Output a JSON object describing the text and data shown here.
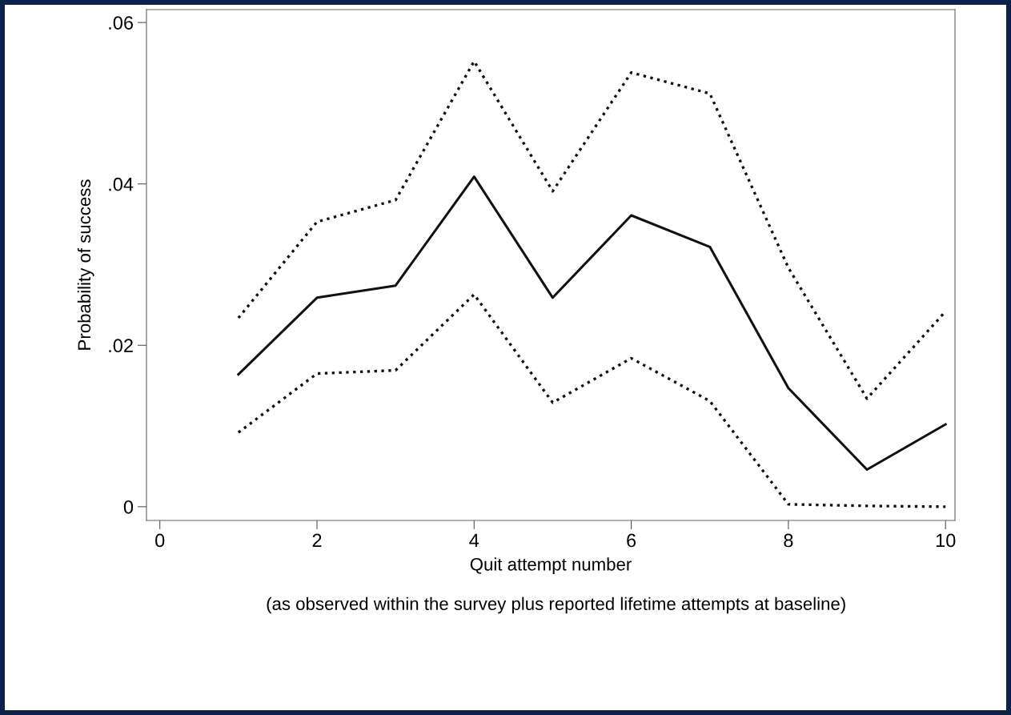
{
  "chart_data": {
    "type": "line",
    "xlabel": "Quit attempt number",
    "ylabel": "Probability of success",
    "annotations": [
      "(as observed within the survey plus reported lifetime attempts at baseline)"
    ],
    "x": [
      1,
      2,
      3,
      4,
      5,
      6,
      7,
      8,
      9,
      10
    ],
    "series": [
      {
        "color": "#111111",
        "line_style": "dotted",
        "values": [
          0.0234,
          0.0353,
          0.038,
          0.0552,
          0.0391,
          0.0538,
          0.0512,
          0.0296,
          0.0134,
          0.0242
        ]
      },
      {
        "color": "#111111",
        "line_style": "solid",
        "values": [
          0.0164,
          0.0259,
          0.0274,
          0.0409,
          0.0259,
          0.0361,
          0.0322,
          0.0147,
          0.0046,
          0.0102
        ]
      },
      {
        "color": "#111111",
        "line_style": "dotted",
        "values": [
          0.0092,
          0.0165,
          0.0169,
          0.0263,
          0.0129,
          0.0184,
          0.0131,
          0.0003,
          0.0001,
          0.0
        ]
      }
    ],
    "xlim": [
      -0.17,
      10.12
    ],
    "ylim": [
      -0.0017,
      0.0616
    ],
    "xticks": [
      0,
      2,
      4,
      6,
      8,
      10
    ],
    "yticks": [
      {
        "value": 0,
        "label": "0"
      },
      {
        "value": 0.02,
        "label": ".02"
      },
      {
        "value": 0.04,
        "label": ".04"
      },
      {
        "value": 0.06,
        "label": ".06"
      }
    ],
    "grid": false,
    "legend": false,
    "marker": "none"
  }
}
